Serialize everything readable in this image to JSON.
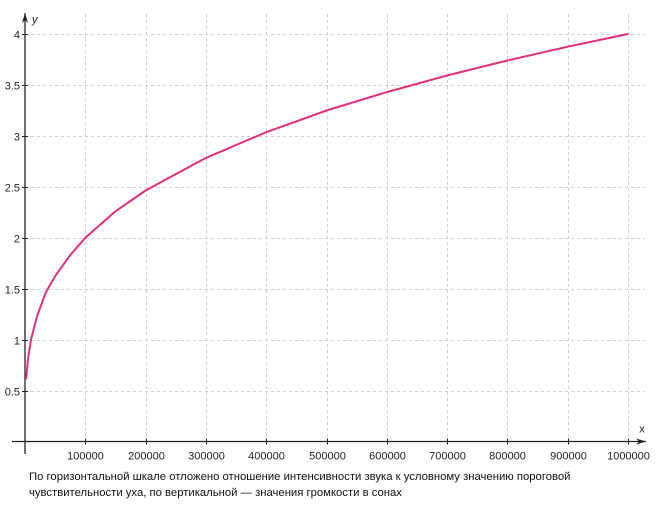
{
  "chart_data": {
    "type": "line",
    "title": "",
    "xlabel": "x",
    "ylabel": "y",
    "xlim": [
      0,
      1000000
    ],
    "ylim": [
      0,
      4
    ],
    "grid": true,
    "x_ticks": [
      100000,
      200000,
      300000,
      400000,
      500000,
      600000,
      700000,
      800000,
      900000,
      1000000
    ],
    "x_tick_labels": [
      "100000",
      "200000",
      "300000",
      "400000",
      "500000",
      "600000",
      "700000",
      "800000",
      "900000",
      "1000000"
    ],
    "y_ticks": [
      0.5,
      1,
      1.5,
      2,
      2.5,
      3,
      3.5,
      4
    ],
    "y_tick_labels": [
      "0.5",
      "1",
      "1.5",
      "2",
      "2.5",
      "3",
      "3.5",
      "4"
    ],
    "series": [
      {
        "color": "#e0307a",
        "x": [
          2000,
          5000,
          10000,
          20000,
          35000,
          50000,
          75000,
          100000,
          150000,
          200000,
          300000,
          400000,
          500000,
          600000,
          700000,
          800000,
          900000,
          1000000
        ],
        "y": [
          0.616,
          0.812,
          1.0,
          1.232,
          1.47,
          1.624,
          1.83,
          2.0,
          2.26,
          2.464,
          2.784,
          3.036,
          3.249,
          3.43,
          3.593,
          3.74,
          3.875,
          4.0
        ]
      }
    ],
    "caption": "По горизонтальной шкале отложено отношение интенсивности звука к условному значению пороговой чувствительности уха, по вертикальной — значения громкости в сонах"
  }
}
